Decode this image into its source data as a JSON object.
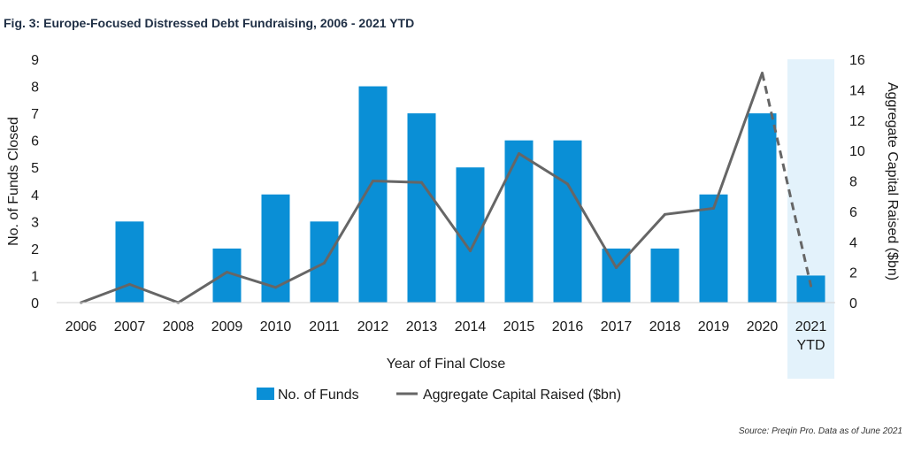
{
  "figure": {
    "title": "Fig. 3: Europe-Focused Distressed Debt Fundraising, 2006 - 2021 YTD",
    "source": "Source: Preqin Pro. Data as of June 2021"
  },
  "chart_data": {
    "type": "bar",
    "categories": [
      "2006",
      "2007",
      "2008",
      "2009",
      "2010",
      "2011",
      "2012",
      "2013",
      "2014",
      "2015",
      "2016",
      "2017",
      "2018",
      "2019",
      "2020",
      "2021\nYTD"
    ],
    "xlabel": "Year of Final Close",
    "ylabel": "No. of Funds Closed",
    "ylabel_right": "Aggregate Capital Raised ($bn)",
    "ylim": [
      0,
      9
    ],
    "ylim_right": [
      0,
      16
    ],
    "yticks": [
      0,
      1,
      2,
      3,
      4,
      5,
      6,
      7,
      8,
      9
    ],
    "yticks_right": [
      0,
      2,
      4,
      6,
      8,
      10,
      12,
      14,
      16
    ],
    "highlighted_category": "2021\nYTD",
    "legend_position": "bottom",
    "grid": false,
    "series": [
      {
        "name": "No. of Funds",
        "type": "bar",
        "axis": "left",
        "color": "#0a8fd6",
        "values": [
          0,
          3,
          0,
          2,
          4,
          3,
          8,
          7,
          5,
          6,
          6,
          2,
          2,
          4,
          7,
          1
        ]
      },
      {
        "name": "Aggregate Capital Raised ($bn)",
        "type": "line",
        "axis": "right",
        "color": "#666666",
        "dashed_from_index": 14,
        "values": [
          0,
          1.2,
          0,
          2.0,
          1.0,
          2.6,
          8.0,
          7.9,
          3.4,
          9.8,
          7.8,
          2.3,
          5.8,
          6.2,
          15.1,
          1.1
        ]
      }
    ],
    "highlight_color": "#e3f2fb"
  }
}
